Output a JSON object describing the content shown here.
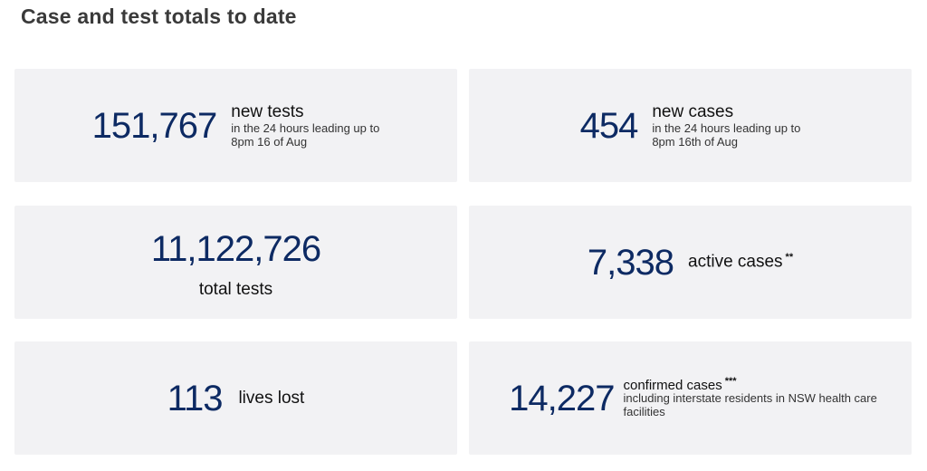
{
  "page": {
    "title": "Case and test totals to date"
  },
  "cards": {
    "new_tests": {
      "value": "151,767",
      "label": "new tests",
      "sub_line1": "in the 24 hours leading up to",
      "sub_line2": "8pm 16 of Aug"
    },
    "new_cases": {
      "value": "454",
      "label": "new cases",
      "sub_line1": "in the 24 hours leading up to",
      "sub_line2": "8pm 16th of Aug"
    },
    "total_tests": {
      "value": "11,122,726",
      "label": "total tests"
    },
    "active_cases": {
      "value": "7,338",
      "label": "active cases",
      "footnote": "**"
    },
    "lives_lost": {
      "value": "113",
      "label": "lives lost"
    },
    "confirmed_cases": {
      "value": "14,227",
      "label": "confirmed cases",
      "footnote": "***",
      "sub_line1": "including interstate residents in NSW health care",
      "sub_line2": "facilities"
    }
  },
  "colors": {
    "value_text": "#0d2a63",
    "card_background": "#f2f2f4",
    "title_text": "#3a3a3a"
  }
}
